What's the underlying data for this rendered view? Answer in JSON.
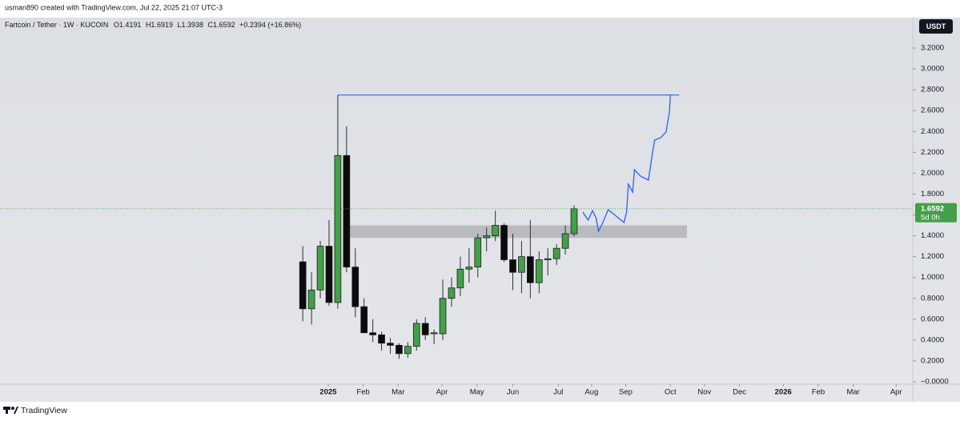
{
  "attribution": "usman890 created with TradingView.com, Jul 22, 2025 21:07 UTC-3",
  "currency_button": "USDT",
  "footer_brand": "TradingView",
  "chart_data": {
    "type": "candlestick",
    "symbol": "Fartcoin / Tether · 1W · KUCOIN",
    "ohlc_labels": [
      "O1.4191",
      "H1.6919",
      "L1.3938",
      "C1.6592"
    ],
    "change_label": "+0.2394 (+16.86%)",
    "countdown": "5d 0h",
    "categories": [
      null,
      null,
      null,
      null,
      null,
      null,
      null,
      null,
      null,
      null,
      null,
      null,
      null,
      null,
      null,
      null,
      null,
      null,
      null,
      null,
      null,
      null,
      null,
      null,
      null,
      null,
      null,
      null,
      null,
      null,
      null,
      null
    ],
    "open": [
      1.15,
      0.7,
      0.88,
      1.3,
      0.76,
      2.17,
      1.1,
      0.72,
      0.47,
      0.45,
      0.37,
      0.35,
      0.27,
      0.34,
      0.56,
      0.46,
      0.46,
      0.8,
      0.9,
      1.08,
      1.1,
      1.38,
      1.4,
      1.5,
      1.17,
      1.05,
      1.2,
      0.95,
      1.17,
      1.18,
      1.28,
      1.4191
    ],
    "high": [
      1.3,
      1.05,
      1.35,
      1.55,
      2.75,
      2.45,
      1.28,
      0.8,
      0.6,
      0.48,
      0.42,
      0.37,
      0.38,
      0.6,
      0.62,
      0.5,
      0.98,
      1.0,
      1.2,
      1.28,
      1.42,
      1.48,
      1.64,
      1.52,
      1.42,
      1.35,
      1.55,
      1.25,
      1.28,
      1.32,
      1.5,
      1.6919
    ],
    "low": [
      0.58,
      0.55,
      0.8,
      0.73,
      0.7,
      1.05,
      0.62,
      0.48,
      0.38,
      0.3,
      0.27,
      0.22,
      0.23,
      0.3,
      0.4,
      0.36,
      0.4,
      0.72,
      0.82,
      0.95,
      1.0,
      1.25,
      1.35,
      1.15,
      0.88,
      0.85,
      0.8,
      0.85,
      1.02,
      1.12,
      1.22,
      1.3938
    ],
    "close": [
      0.7,
      0.88,
      1.3,
      0.76,
      2.17,
      1.1,
      0.72,
      0.47,
      0.45,
      0.37,
      0.35,
      0.27,
      0.34,
      0.56,
      0.45,
      0.47,
      0.8,
      0.9,
      1.08,
      1.1,
      1.38,
      1.4,
      1.5,
      1.17,
      1.05,
      1.2,
      0.95,
      1.17,
      1.18,
      1.28,
      1.42,
      1.6592
    ],
    "up_color": "#43a047",
    "down_color": "#0b0b0b",
    "xlim": [
      -34.6,
      69.7
    ],
    "xticks": [
      {
        "value": 2.9,
        "label": "2025"
      },
      {
        "value": 6.9,
        "label": "Feb"
      },
      {
        "value": 10.9,
        "label": "Mar"
      },
      {
        "value": 15.9,
        "label": "Apr"
      },
      {
        "value": 19.9,
        "label": "May"
      },
      {
        "value": 24.0,
        "label": "Jun"
      },
      {
        "value": 29.2,
        "label": "Jul"
      },
      {
        "value": 33.0,
        "label": "Aug"
      },
      {
        "value": 36.9,
        "label": "Sep"
      },
      {
        "value": 42.0,
        "label": "Oct"
      },
      {
        "value": 45.9,
        "label": "Nov"
      },
      {
        "value": 49.9,
        "label": "Dec"
      },
      {
        "value": 54.9,
        "label": "2026"
      },
      {
        "value": 58.9,
        "label": "Feb"
      },
      {
        "value": 62.9,
        "label": "Mar"
      },
      {
        "value": 67.8,
        "label": "Apr"
      }
    ],
    "ylim": [
      -0.023,
      3.492
    ],
    "yticks": [
      {
        "value": 0,
        "label": "−0.0000"
      },
      {
        "value": 0.2,
        "label": "0.2000"
      },
      {
        "value": 0.4,
        "label": "0.4000"
      },
      {
        "value": 0.6,
        "label": "0.6000"
      },
      {
        "value": 0.8,
        "label": "0.8000"
      },
      {
        "value": 1.0,
        "label": "1.0000"
      },
      {
        "value": 1.2,
        "label": "1.2000"
      },
      {
        "value": 1.4,
        "label": "1.4000"
      },
      {
        "value": 1.6,
        "label": "1.6000"
      },
      {
        "value": 1.8,
        "label": "1.8000"
      },
      {
        "value": 2.0,
        "label": "2.0000"
      },
      {
        "value": 2.2,
        "label": "2.2000"
      },
      {
        "value": 2.4,
        "label": "2.4000"
      },
      {
        "value": 2.6,
        "label": "2.6000"
      },
      {
        "value": 2.8,
        "label": "2.8000"
      },
      {
        "value": 3.0,
        "label": "3.0000"
      },
      {
        "value": 3.2,
        "label": "3.2000"
      }
    ],
    "level_line": {
      "x": [
        4.0,
        43.0
      ],
      "y": 2.75,
      "color": "#2962ff"
    },
    "zone": {
      "x": [
        5.0,
        43.9
      ],
      "y": [
        1.38,
        1.5
      ],
      "color": "#a9a9ad"
    },
    "projection": {
      "color": "#2962ff",
      "x": [
        32.0,
        32.6,
        33.1,
        33.5,
        33.8,
        34.2,
        34.9,
        35.8,
        36.7,
        37.0,
        37.2,
        37.7,
        37.9,
        38.6,
        39.5,
        39.9,
        40.2,
        40.9,
        41.5,
        41.9,
        42.0
      ],
      "y": [
        1.627,
        1.55,
        1.642,
        1.573,
        1.443,
        1.512,
        1.65,
        1.589,
        1.527,
        1.627,
        1.896,
        1.819,
        2.034,
        1.972,
        1.934,
        2.164,
        2.318,
        2.341,
        2.395,
        2.586,
        2.755
      ]
    }
  }
}
